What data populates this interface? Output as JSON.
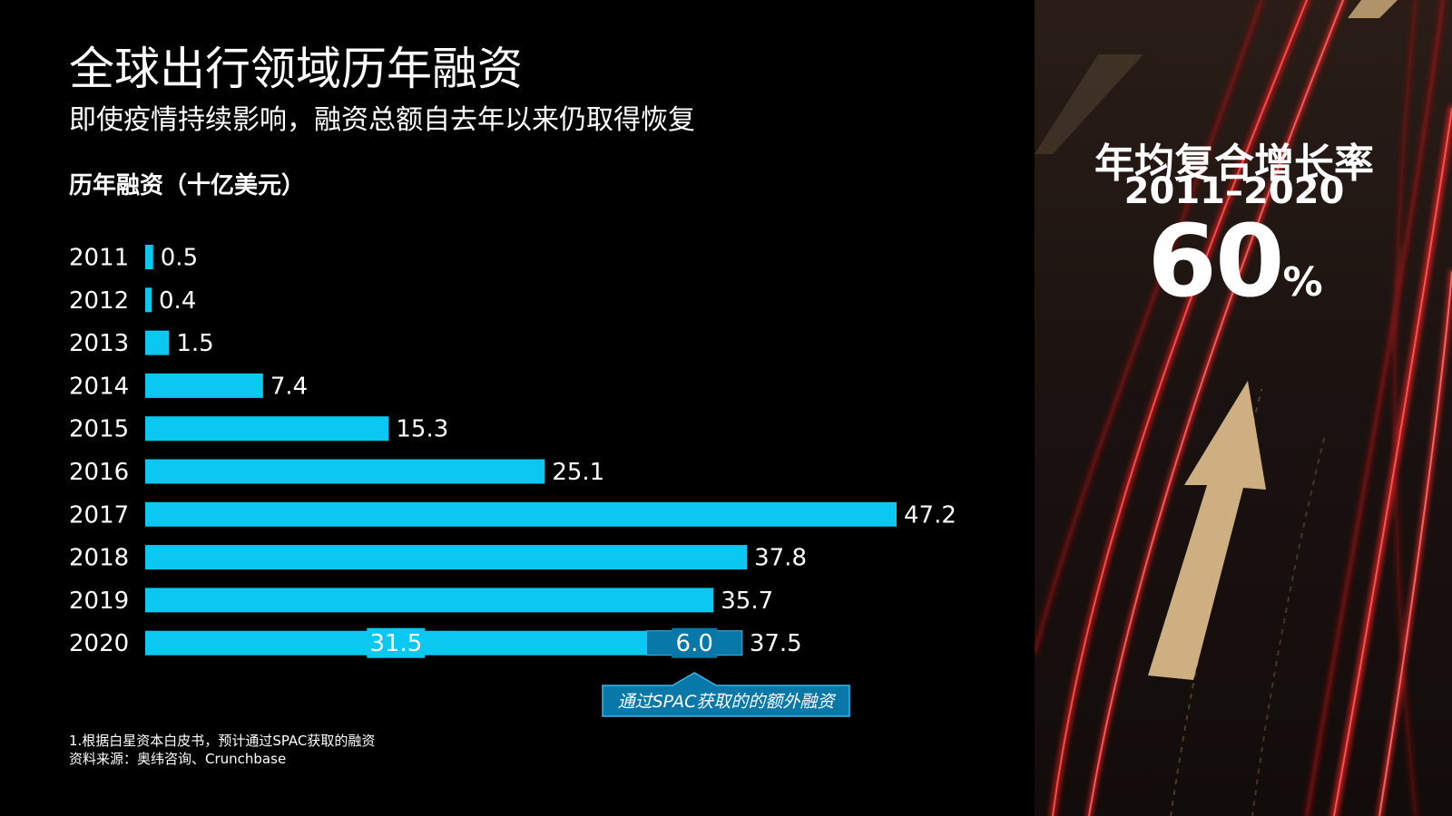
{
  "title": "全球出行领域历年融资",
  "subtitle": "即使疫情持续影响，融资总额自去年以来仍取得恢复",
  "colors": {
    "bar": "#0ac8f0",
    "spac_bar": "#0878a8",
    "callout_bg": "#0878a8",
    "callout_border": "#3ab6e8",
    "background": "#000000"
  },
  "chart_data": {
    "type": "bar",
    "orientation": "horizontal",
    "ylabel": "历年融资（十亿美元）",
    "categories": [
      "2011",
      "2012",
      "2013",
      "2014",
      "2015",
      "2016",
      "2017",
      "2018",
      "2019",
      "2020"
    ],
    "values": [
      0.5,
      0.4,
      1.5,
      7.4,
      15.3,
      25.1,
      47.2,
      37.8,
      35.7,
      37.5
    ],
    "value_labels": [
      "0.5",
      "0.4",
      "1.5",
      "7.4",
      "15.3",
      "25.1",
      "47.2",
      "37.8",
      "35.7",
      "37.5"
    ],
    "stacked_2020": {
      "base": 31.5,
      "base_label": "31.5",
      "spac": 6.0,
      "spac_label": "6.0"
    },
    "annotation": "通过SPAC获取的的额外融资",
    "xlim": [
      0,
      47.2
    ],
    "grid": false
  },
  "footnotes": [
    "1.根据白星资本白皮书，预计通过SPAC获取的融资",
    "资料来源：奥纬咨询、Crunchbase"
  ],
  "cagr": {
    "label": "年均复合增长率",
    "period": "2011–2020",
    "value": "60",
    "unit": "%"
  }
}
